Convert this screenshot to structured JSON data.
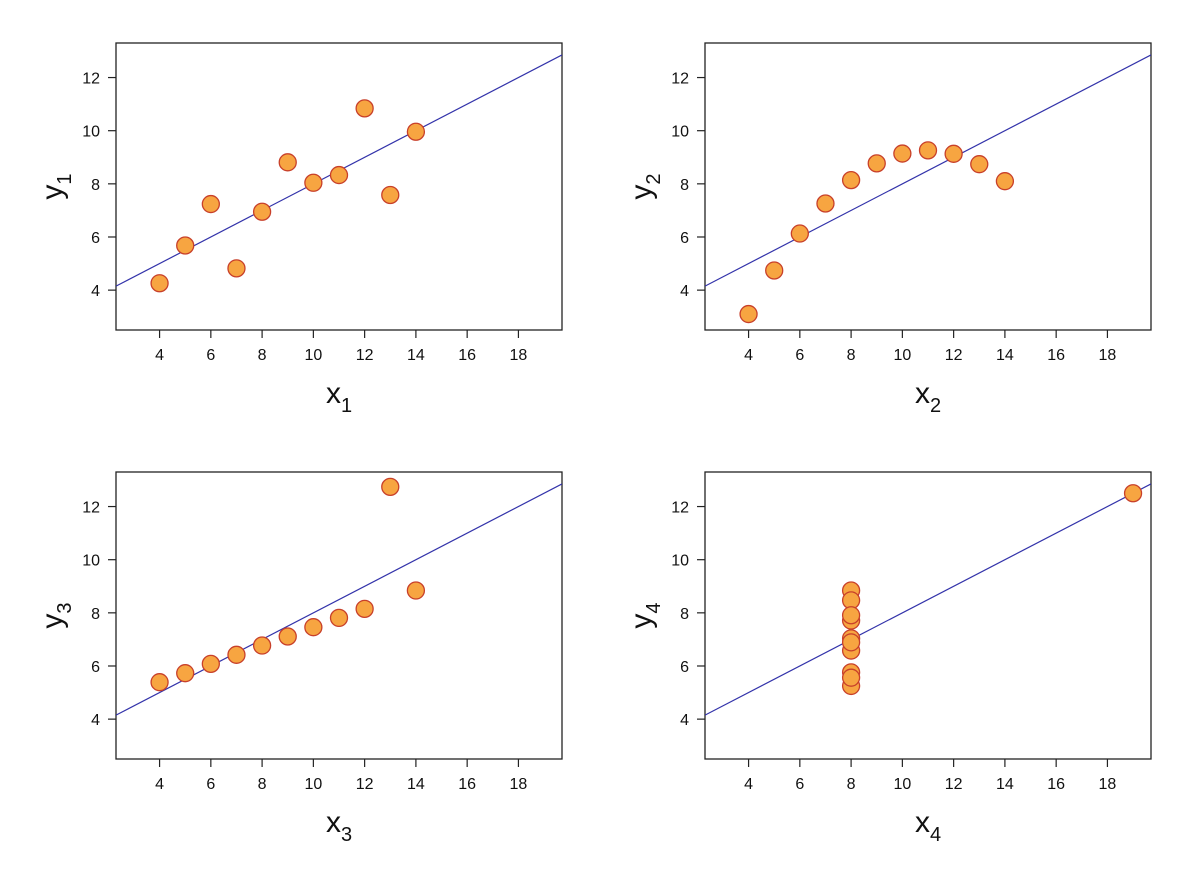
{
  "colors": {
    "point_fill": "#f7a541",
    "point_stroke": "#c8402a",
    "fit_line": "#3333aa",
    "frame": "#222222"
  },
  "chart_data": [
    {
      "type": "scatter",
      "xlabel": "x",
      "xlabel_sub": "1",
      "ylabel": "y",
      "ylabel_sub": "1",
      "xlim": [
        2.3,
        19.7
      ],
      "ylim": [
        2.5,
        13.3
      ],
      "xticks": [
        4,
        6,
        8,
        10,
        12,
        14,
        16,
        18
      ],
      "yticks": [
        4,
        6,
        8,
        10,
        12
      ],
      "grid": false,
      "fit_line": {
        "intercept": 3.0,
        "slope": 0.5
      },
      "x": [
        10,
        8,
        13,
        9,
        11,
        14,
        6,
        4,
        12,
        7,
        5
      ],
      "y": [
        8.04,
        6.95,
        7.58,
        8.81,
        8.33,
        9.96,
        7.24,
        4.26,
        10.84,
        4.82,
        5.68
      ]
    },
    {
      "type": "scatter",
      "xlabel": "x",
      "xlabel_sub": "2",
      "ylabel": "y",
      "ylabel_sub": "2",
      "xlim": [
        2.3,
        19.7
      ],
      "ylim": [
        2.5,
        13.3
      ],
      "xticks": [
        4,
        6,
        8,
        10,
        12,
        14,
        16,
        18
      ],
      "yticks": [
        4,
        6,
        8,
        10,
        12
      ],
      "grid": false,
      "fit_line": {
        "intercept": 3.0,
        "slope": 0.5
      },
      "x": [
        10,
        8,
        13,
        9,
        11,
        14,
        6,
        4,
        12,
        7,
        5
      ],
      "y": [
        9.14,
        8.14,
        8.74,
        8.77,
        9.26,
        8.1,
        6.13,
        3.1,
        9.13,
        7.26,
        4.74
      ]
    },
    {
      "type": "scatter",
      "xlabel": "x",
      "xlabel_sub": "3",
      "ylabel": "y",
      "ylabel_sub": "3",
      "xlim": [
        2.3,
        19.7
      ],
      "ylim": [
        2.5,
        13.3
      ],
      "xticks": [
        4,
        6,
        8,
        10,
        12,
        14,
        16,
        18
      ],
      "yticks": [
        4,
        6,
        8,
        10,
        12
      ],
      "grid": false,
      "fit_line": {
        "intercept": 3.0,
        "slope": 0.5
      },
      "x": [
        10,
        8,
        13,
        9,
        11,
        14,
        6,
        4,
        12,
        7,
        5
      ],
      "y": [
        7.46,
        6.77,
        12.74,
        7.11,
        7.81,
        8.84,
        6.08,
        5.39,
        8.15,
        6.42,
        5.73
      ]
    },
    {
      "type": "scatter",
      "xlabel": "x",
      "xlabel_sub": "4",
      "ylabel": "y",
      "ylabel_sub": "4",
      "xlim": [
        2.3,
        19.7
      ],
      "ylim": [
        2.5,
        13.3
      ],
      "xticks": [
        4,
        6,
        8,
        10,
        12,
        14,
        16,
        18
      ],
      "yticks": [
        4,
        6,
        8,
        10,
        12
      ],
      "grid": false,
      "fit_line": {
        "intercept": 3.0,
        "slope": 0.5
      },
      "x": [
        8,
        8,
        8,
        8,
        8,
        8,
        8,
        19,
        8,
        8,
        8
      ],
      "y": [
        6.58,
        5.76,
        7.71,
        8.84,
        8.47,
        7.04,
        5.25,
        12.5,
        5.56,
        7.91,
        6.89
      ]
    }
  ]
}
